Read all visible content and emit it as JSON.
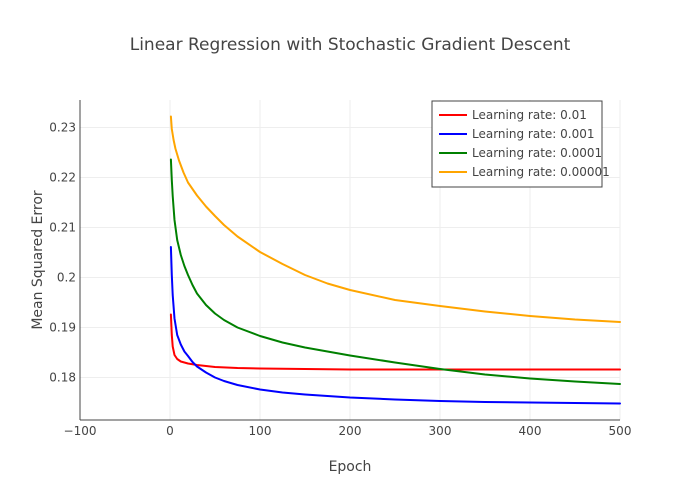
{
  "chart_data": {
    "type": "line",
    "title": "Linear Regression with Stochastic Gradient Descent",
    "xlabel": "Epoch",
    "ylabel": "Mean Squared Error",
    "xlim": [
      -100,
      500
    ],
    "ylim": [
      0.1715,
      0.2355
    ],
    "xticks": [
      -100,
      0,
      100,
      200,
      300,
      400,
      500
    ],
    "xtick_labels": [
      "−100",
      "0",
      "100",
      "200",
      "300",
      "400",
      "500"
    ],
    "yticks": [
      0.18,
      0.19,
      0.2,
      0.21,
      0.22,
      0.23
    ],
    "ytick_labels": [
      "0.18",
      "0.19",
      "0.2",
      "0.21",
      "0.22",
      "0.23"
    ],
    "grid": true,
    "legend_position": "top-right",
    "series": [
      {
        "name": "Learning rate: 0.01",
        "color": "#ff0000",
        "x": [
          1,
          2,
          3,
          5,
          8,
          12,
          20,
          30,
          50,
          75,
          100,
          150,
          200,
          300,
          400,
          500
        ],
        "y": [
          0.1926,
          0.1885,
          0.1862,
          0.1845,
          0.1837,
          0.1832,
          0.1828,
          0.1825,
          0.1821,
          0.1819,
          0.1818,
          0.1817,
          0.1816,
          0.1816,
          0.1816,
          0.1816
        ]
      },
      {
        "name": "Learning rate: 0.001",
        "color": "#0000ff",
        "x": [
          1,
          2,
          3,
          5,
          8,
          12,
          16,
          20,
          25,
          30,
          40,
          50,
          60,
          75,
          100,
          125,
          150,
          200,
          250,
          300,
          350,
          400,
          450,
          500
        ],
        "y": [
          0.2061,
          0.2005,
          0.1965,
          0.1918,
          0.1885,
          0.1866,
          0.1852,
          0.1843,
          0.1831,
          0.1822,
          0.181,
          0.18,
          0.1793,
          0.1785,
          0.1776,
          0.177,
          0.1766,
          0.176,
          0.1756,
          0.1753,
          0.1751,
          0.175,
          0.1749,
          0.1748
        ]
      },
      {
        "name": "Learning rate: 0.0001",
        "color": "#008000",
        "x": [
          1,
          2,
          3,
          5,
          8,
          12,
          16,
          20,
          25,
          30,
          40,
          50,
          60,
          75,
          100,
          125,
          150,
          200,
          250,
          300,
          350,
          400,
          450,
          500
        ],
        "y": [
          0.2236,
          0.2195,
          0.2163,
          0.2115,
          0.2075,
          0.2045,
          0.2023,
          0.2005,
          0.1985,
          0.1968,
          0.1945,
          0.1928,
          0.1915,
          0.19,
          0.1883,
          0.187,
          0.186,
          0.1844,
          0.183,
          0.1817,
          0.1806,
          0.1798,
          0.1792,
          0.1787
        ]
      },
      {
        "name": "Learning rate: 0.00001",
        "color": "#ffa500",
        "x": [
          1,
          2,
          4,
          6,
          10,
          15,
          20,
          30,
          40,
          50,
          60,
          75,
          100,
          125,
          150,
          175,
          200,
          250,
          300,
          350,
          400,
          450,
          500
        ],
        "y": [
          0.2322,
          0.2297,
          0.2275,
          0.2258,
          0.2234,
          0.221,
          0.219,
          0.2164,
          0.2142,
          0.2123,
          0.2105,
          0.2082,
          0.2051,
          0.2027,
          0.2005,
          0.1988,
          0.1975,
          0.1955,
          0.1943,
          0.1932,
          0.1923,
          0.1916,
          0.1911
        ]
      }
    ]
  }
}
